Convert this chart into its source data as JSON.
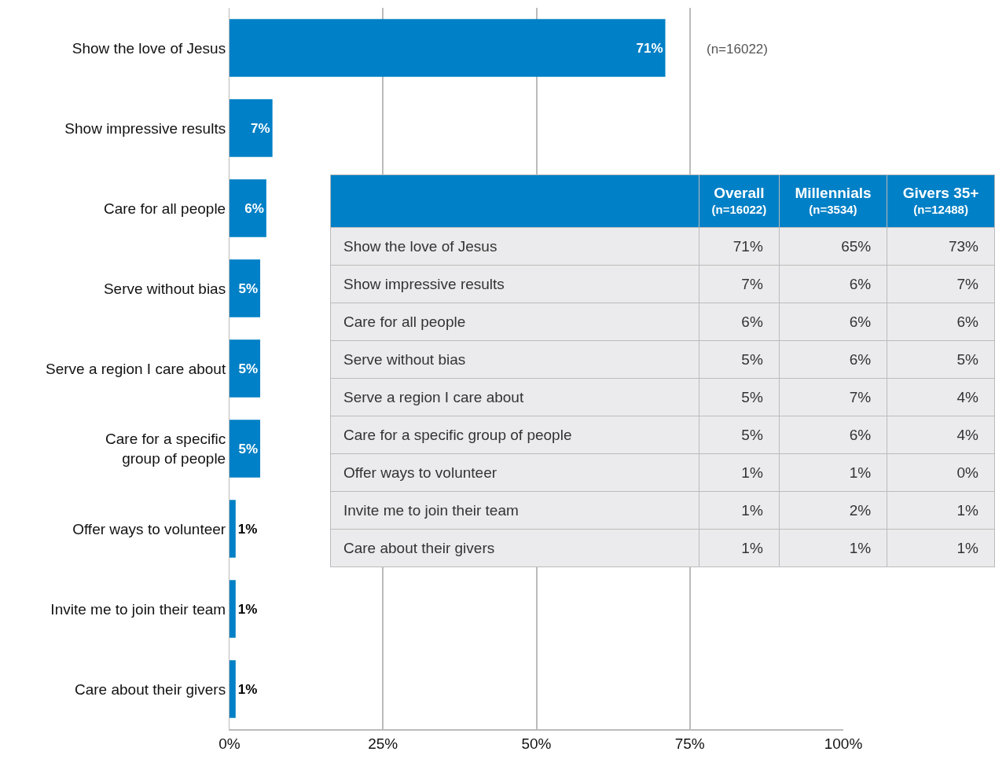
{
  "chart_data": [
    {
      "type": "bar",
      "orientation": "horizontal",
      "categories": [
        "Show the love of Jesus",
        "Show impressive results",
        "Care for all people",
        "Serve without bias",
        "Serve a region I care about",
        "Care for a specific group of people",
        "Offer ways to volunteer",
        "Invite me to join their team",
        "Care about their givers"
      ],
      "values": [
        71,
        7,
        6,
        5,
        5,
        5,
        1,
        1,
        1
      ],
      "value_labels": [
        "71%",
        "7%",
        "6%",
        "5%",
        "5%",
        "5%",
        "1%",
        "1%",
        "1%"
      ],
      "color": "#0080c6",
      "xlim": [
        0,
        100
      ],
      "xticks": [
        {
          "value": 0,
          "label": "0%"
        },
        {
          "value": 25,
          "label": "25%"
        },
        {
          "value": 50,
          "label": "50%"
        },
        {
          "value": 75,
          "label": "75%"
        },
        {
          "value": 100,
          "label": "100%"
        }
      ],
      "grid": "x",
      "legend": false,
      "annotations": [
        "(n=16022)"
      ]
    },
    {
      "type": "other",
      "categories": [
        "Show the love of Jesus",
        "Show impressive results",
        "Care for all people",
        "Serve without bias",
        "Serve a region I care about",
        "Care for a specific group of people",
        "Offer ways to volunteer",
        "Invite me to join their team",
        "Care about their givers"
      ],
      "series": [
        {
          "name": "Overall\n(n=16022)",
          "values": [
            71,
            7,
            6,
            5,
            5,
            5,
            1,
            1,
            1
          ],
          "value_labels": [
            "71%",
            "7%",
            "6%",
            "5%",
            "5%",
            "5%",
            "1%",
            "1%",
            "1%"
          ]
        },
        {
          "name": "Millennials\n(n=3534)",
          "values": [
            65,
            6,
            6,
            6,
            7,
            6,
            1,
            2,
            1
          ],
          "value_labels": [
            "65%",
            "6%",
            "6%",
            "6%",
            "7%",
            "6%",
            "1%",
            "2%",
            "1%"
          ]
        },
        {
          "name": "Givers 35+\n(n=12488)",
          "values": [
            73,
            7,
            6,
            5,
            4,
            4,
            0,
            1,
            1
          ],
          "value_labels": [
            "73%",
            "7%",
            "6%",
            "5%",
            "4%",
            "4%",
            "0%",
            "1%",
            "1%"
          ]
        }
      ]
    }
  ]
}
